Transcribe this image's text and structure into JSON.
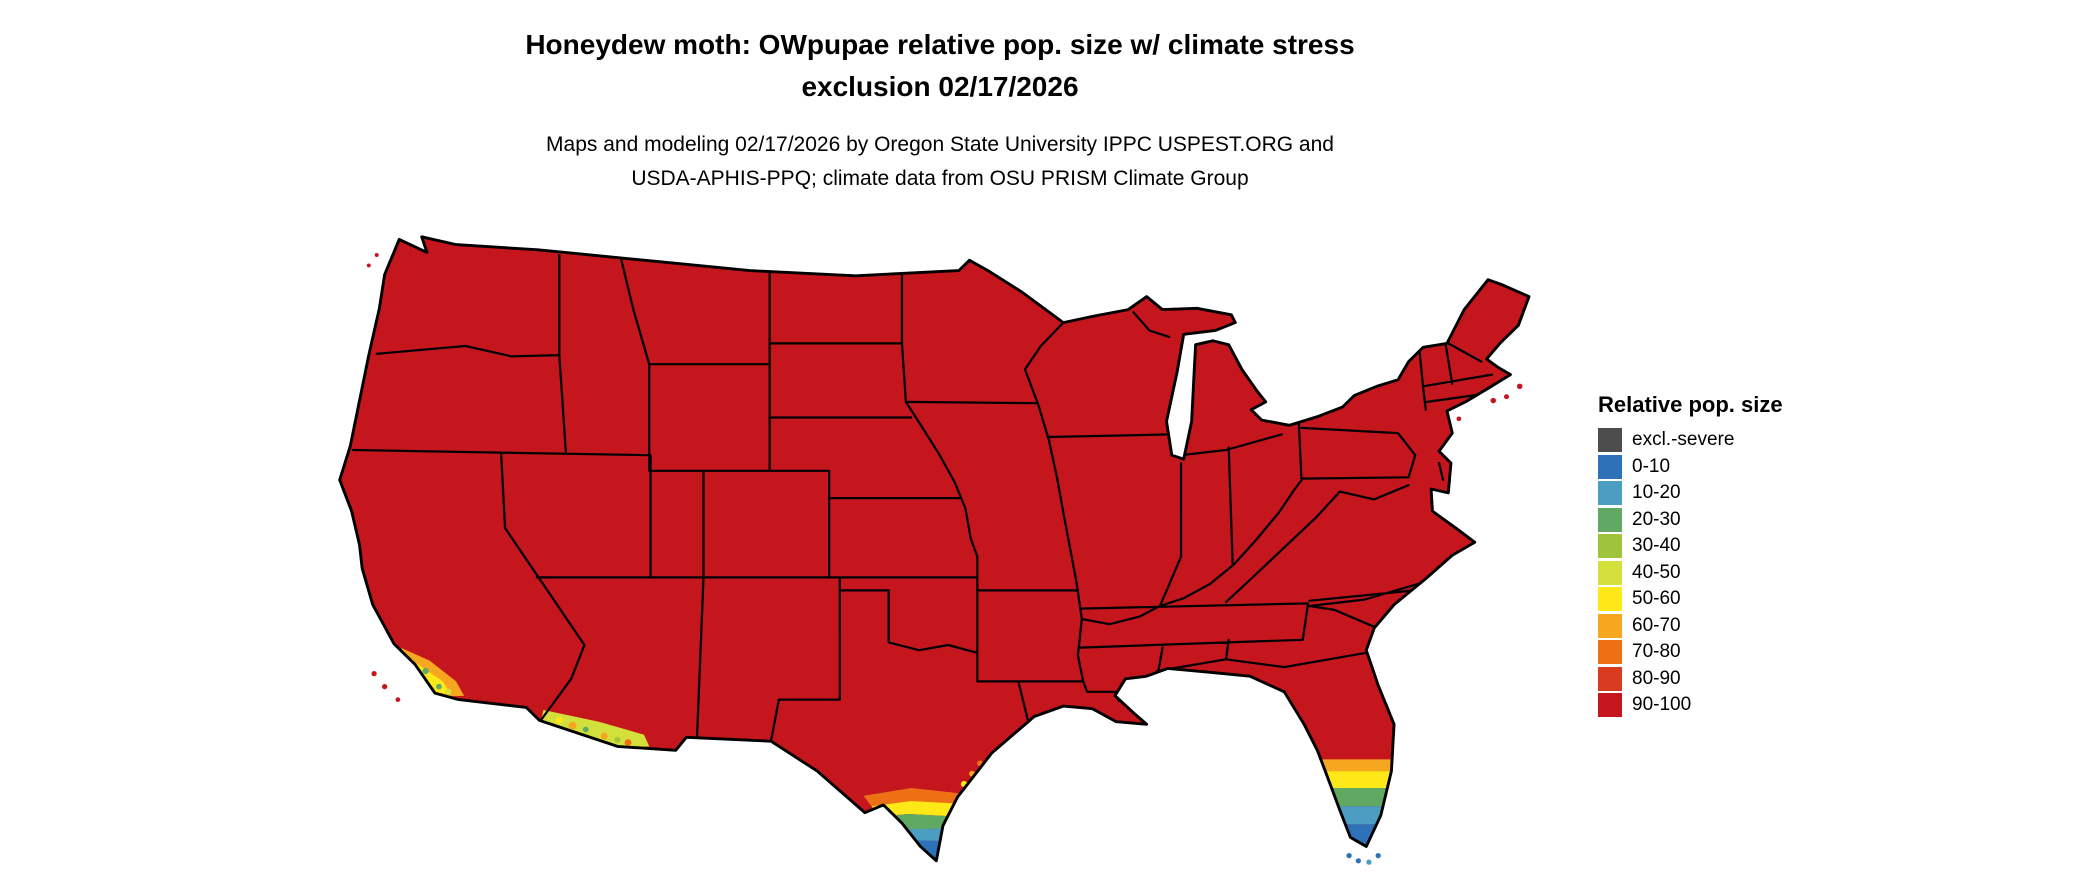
{
  "title": {
    "line1": "Honeydew moth: OWpupae relative pop. size w/ climate stress",
    "line2": "exclusion 02/17/2026"
  },
  "subtitle": {
    "line1": "Maps and modeling 02/17/2026 by Oregon State University IPPC USPEST.ORG and",
    "line2": "USDA-APHIS-PPQ; climate data from OSU PRISM Climate Group"
  },
  "legend": {
    "title": "Relative pop. size",
    "items": [
      {
        "label": "excl.-severe",
        "color": "#4d4d4d"
      },
      {
        "label": "0-10",
        "color": "#2d72b8"
      },
      {
        "label": "10-20",
        "color": "#4b9dc2"
      },
      {
        "label": "20-30",
        "color": "#60a963"
      },
      {
        "label": "30-40",
        "color": "#9fc43c"
      },
      {
        "label": "40-50",
        "color": "#d3df3a"
      },
      {
        "label": "50-60",
        "color": "#ffe818"
      },
      {
        "label": "60-70",
        "color": "#f7a71f"
      },
      {
        "label": "70-80",
        "color": "#ed7014"
      },
      {
        "label": "80-90",
        "color": "#d93b1e"
      },
      {
        "label": "90-100",
        "color": "#c5161d"
      }
    ]
  },
  "map": {
    "region_label": "Continental United States",
    "dominant_class": "90-100",
    "low_population_areas": [
      "southern California coast",
      "southwestern Arizona",
      "southern Texas (Rio Grande Valley)",
      "southern Florida and Keys"
    ]
  }
}
